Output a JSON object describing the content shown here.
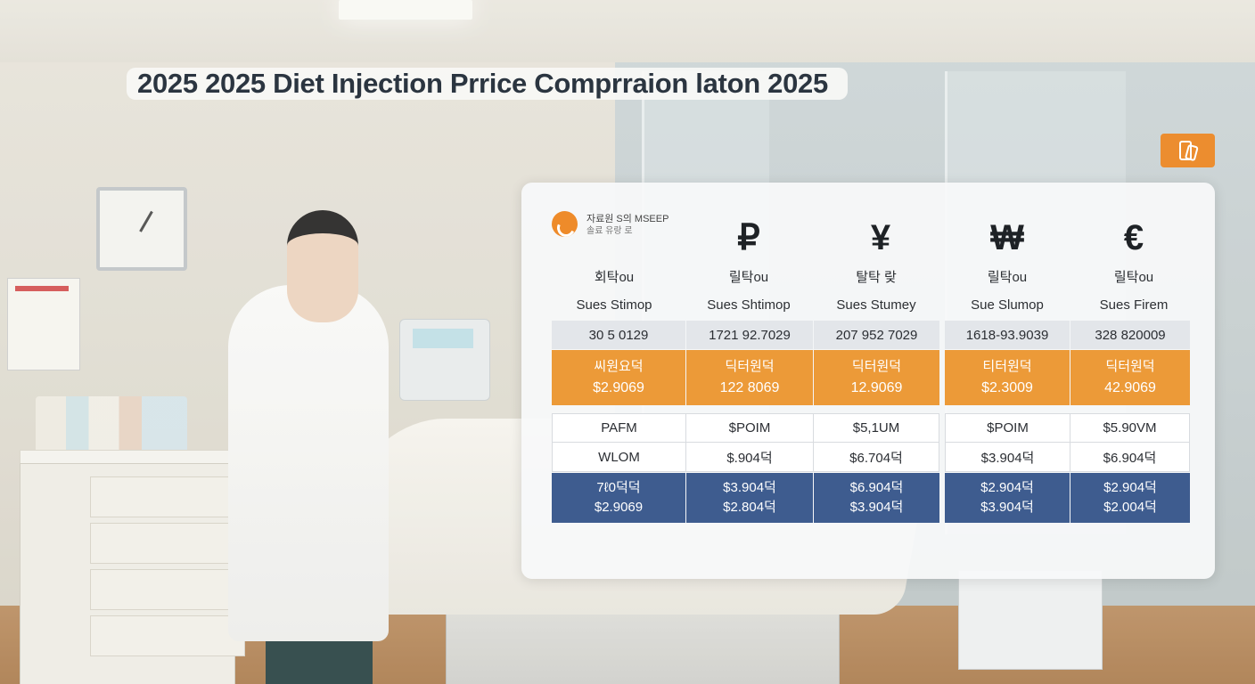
{
  "title": "2025  2025 Diet Injection Prrice Comprraion laton 2025",
  "corner_button": {
    "icon": "phone-tablet-icon"
  },
  "brand": {
    "icon": "orange-swirl-logo-icon",
    "line1": "자료원 S의 MSEEP",
    "line2": "솔료 유랑 로"
  },
  "columns": [
    {
      "currency": "",
      "label": "회탁ou",
      "sub": "Sues Stimop"
    },
    {
      "currency": "₽",
      "label": "릴탁ou",
      "sub": "Sues Shtimop"
    },
    {
      "currency": "¥",
      "label": "탈탁 랒",
      "sub": "Sues Stumey"
    },
    {
      "currency": "₩",
      "label": "릴탁ou",
      "sub": "Sue Slumop"
    },
    {
      "currency": "€",
      "label": "릴탁ou",
      "sub": "Sues Firem"
    }
  ],
  "rows": {
    "codes": [
      "30 5 0129",
      "1721 92.7029",
      "207 952 7029",
      "1618-93.9039",
      "328 820009"
    ],
    "orange": [
      {
        "l1": "씨원요덕",
        "l2": "$2.9069"
      },
      {
        "l1": "딕터원덕",
        "l2": "122 8069"
      },
      {
        "l1": "딕터원덕",
        "l2": "12.9069"
      },
      {
        "l1": "티터원덕",
        "l2": "$2.3009"
      },
      {
        "l1": "딕터원덕",
        "l2": "42.9069"
      }
    ],
    "white1": [
      "PAFM",
      "$POIM",
      "$5,1UM",
      "$POIM",
      "$5.90VM"
    ],
    "white2": [
      "WLOM",
      "$.904덕",
      "$6.704덕",
      "$3.904덕",
      "$6.904덕"
    ],
    "blue": [
      {
        "l1": "7ℓ0덕덕",
        "l2": "$2.9069"
      },
      {
        "l1": "$3.904덕",
        "l2": "$2.804덕"
      },
      {
        "l1": "$6.904덕",
        "l2": "$3.904덕"
      },
      {
        "l1": "$2.904덕",
        "l2": "$3.904덕"
      },
      {
        "l1": "$2.904덕",
        "l2": "$2.004덕"
      }
    ]
  },
  "colors": {
    "accent_orange": "#ec9a38",
    "accent_blue": "#3e5c8f",
    "title_text": "#2b3540"
  }
}
